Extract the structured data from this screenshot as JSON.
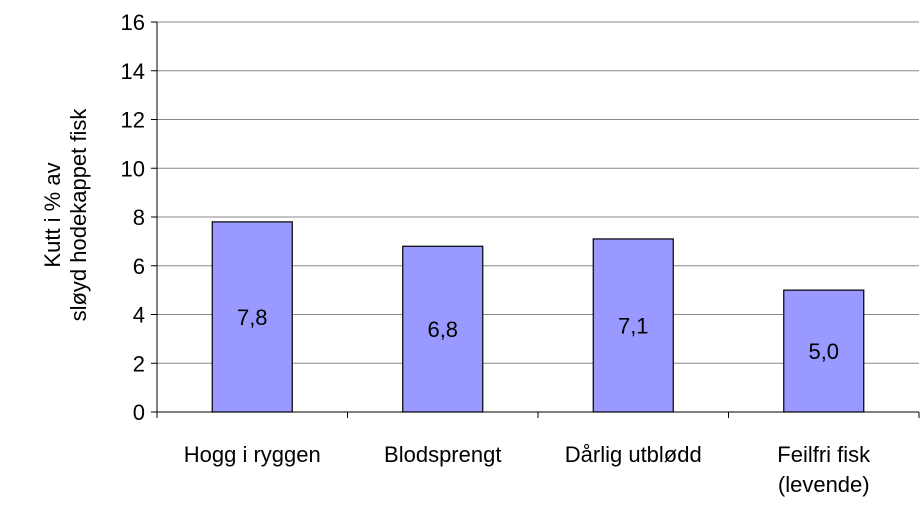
{
  "chart_data": {
    "type": "bar",
    "ylabel": "Kutt i % av\nsløyd hodekappet fisk",
    "categories": [
      "Hogg i ryggen",
      "Blodsprengt",
      "Dårlig utblødd",
      "Feilfri fisk\n(levende)"
    ],
    "values": [
      7.8,
      6.8,
      7.1,
      5.0
    ],
    "value_labels": [
      "7,8",
      "6,8",
      "7,1",
      "5,0"
    ],
    "color": "#9999ff",
    "ylim": [
      0,
      16
    ],
    "yticks": [
      0,
      2,
      4,
      6,
      8,
      10,
      12,
      14,
      16
    ],
    "grid": true
  }
}
